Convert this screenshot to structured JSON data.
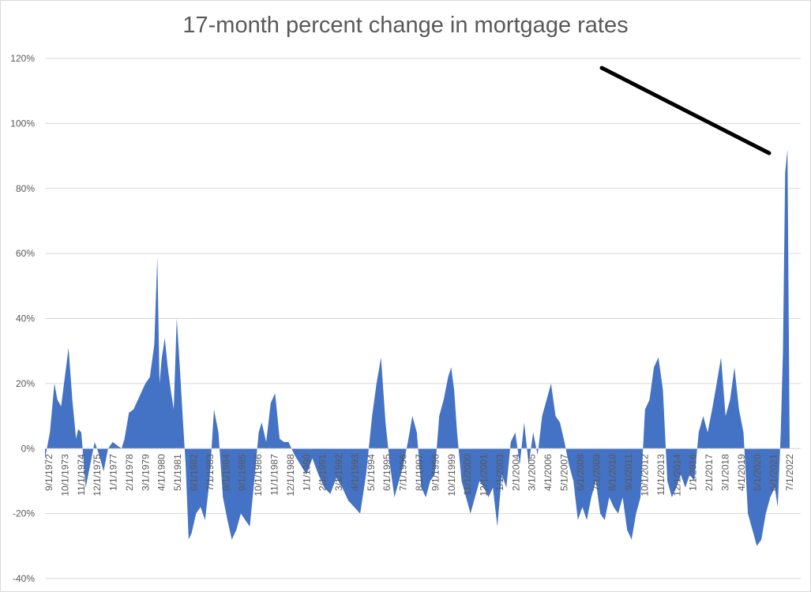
{
  "chart_data": {
    "type": "area",
    "title": "17-month percent change in mortgage rates",
    "xlabel": "",
    "ylabel": "",
    "ylim": [
      -40,
      120
    ],
    "yticks": [
      -40,
      -20,
      0,
      20,
      40,
      60,
      80,
      100,
      120
    ],
    "ytick_labels": [
      "-40%",
      "-20%",
      "0%",
      "20%",
      "40%",
      "60%",
      "80%",
      "100%",
      "120%"
    ],
    "xtick_labels": [
      "9/1/1972",
      "10/1/1973",
      "11/1/1974",
      "12/1/1975",
      "1/1/1977",
      "2/1/1978",
      "3/1/1979",
      "4/1/1980",
      "5/1/1981",
      "6/1/1982",
      "7/1/1983",
      "8/1/1984",
      "9/1/1985",
      "10/1/1986",
      "11/1/1987",
      "12/1/1988",
      "1/1/1990",
      "2/1/1991",
      "3/1/1992",
      "4/1/1993",
      "5/1/1994",
      "6/1/1995",
      "7/1/1996",
      "8/1/1997",
      "9/1/1998",
      "10/1/1999",
      "11/1/2000",
      "12/1/2001",
      "1/1/2003",
      "2/1/2004",
      "3/1/2005",
      "4/1/2006",
      "5/1/2007",
      "6/1/2008",
      "7/1/2009",
      "8/1/2010",
      "9/1/2011",
      "10/1/2012",
      "11/1/2013",
      "12/1/2014",
      "1/1/2016",
      "2/1/2017",
      "3/1/2018",
      "4/1/2019",
      "5/1/2020",
      "6/1/2021",
      "7/1/2022"
    ],
    "grid": true,
    "series": [
      {
        "color": "#4472c4",
        "x": [
          1972.67,
          1973.0,
          1973.3,
          1973.5,
          1973.75,
          1974.0,
          1974.25,
          1974.5,
          1974.75,
          1974.9,
          1975.1,
          1975.4,
          1975.7,
          1976.0,
          1976.3,
          1976.6,
          1976.9,
          1977.2,
          1977.5,
          1977.8,
          1978.0,
          1978.3,
          1978.6,
          1978.9,
          1979.1,
          1979.4,
          1979.7,
          1980.0,
          1980.2,
          1980.35,
          1980.5,
          1980.7,
          1980.9,
          1981.1,
          1981.3,
          1981.5,
          1981.7,
          1981.9,
          1982.1,
          1982.3,
          1982.5,
          1982.8,
          1983.1,
          1983.4,
          1983.7,
          1984.0,
          1984.3,
          1984.6,
          1984.9,
          1985.2,
          1985.5,
          1985.8,
          1986.1,
          1986.4,
          1986.7,
          1987.0,
          1987.2,
          1987.5,
          1987.8,
          1988.1,
          1988.4,
          1988.7,
          1989.0,
          1989.4,
          1989.8,
          1990.2,
          1990.6,
          1991.0,
          1991.4,
          1991.8,
          1992.2,
          1992.6,
          1993.0,
          1993.4,
          1993.8,
          1994.2,
          1994.6,
          1994.9,
          1995.2,
          1995.5,
          1995.8,
          1996.1,
          1996.4,
          1996.7,
          1997.0,
          1997.3,
          1997.6,
          1997.9,
          1998.2,
          1998.5,
          1998.8,
          1999.1,
          1999.4,
          1999.7,
          1999.9,
          2000.1,
          2000.3,
          2000.6,
          2000.9,
          2001.2,
          2001.5,
          2001.8,
          2002.1,
          2002.4,
          2002.7,
          2003.0,
          2003.3,
          2003.6,
          2003.9,
          2004.2,
          2004.5,
          2004.8,
          2005.1,
          2005.4,
          2005.7,
          2006.0,
          2006.3,
          2006.6,
          2006.9,
          2007.2,
          2007.5,
          2007.8,
          2008.1,
          2008.4,
          2008.7,
          2009.0,
          2009.3,
          2009.6,
          2009.9,
          2010.2,
          2010.5,
          2010.8,
          2011.1,
          2011.4,
          2011.7,
          2012.0,
          2012.3,
          2012.6,
          2012.9,
          2013.2,
          2013.5,
          2013.8,
          2014.1,
          2014.4,
          2014.7,
          2015.0,
          2015.3,
          2015.6,
          2015.9,
          2016.2,
          2016.5,
          2016.8,
          2017.1,
          2017.4,
          2017.7,
          2018.0,
          2018.3,
          2018.6,
          2018.9,
          2019.2,
          2019.5,
          2019.8,
          2020.1,
          2020.4,
          2020.7,
          2021.0,
          2021.3,
          2021.6,
          2021.8,
          2022.0,
          2022.15,
          2022.3,
          2022.45,
          2022.6
        ],
        "y": [
          -3,
          5,
          20,
          15,
          13,
          22,
          31,
          15,
          3,
          6,
          5,
          -12,
          -5,
          2,
          -2,
          -7,
          0,
          2,
          1,
          0,
          3,
          11,
          12,
          15,
          17,
          20,
          22,
          32,
          59,
          20,
          28,
          34,
          25,
          18,
          12,
          40,
          26,
          10,
          -5,
          -28,
          -26,
          -20,
          -18,
          -22,
          -10,
          12,
          5,
          -15,
          -22,
          -28,
          -25,
          -20,
          -22,
          -24,
          -10,
          5,
          8,
          2,
          14,
          17,
          3,
          2,
          2,
          -2,
          -5,
          -8,
          -3,
          -8,
          -12,
          -14,
          -9,
          -12,
          -16,
          -18,
          -20,
          -8,
          10,
          20,
          28,
          8,
          -5,
          -15,
          -10,
          -5,
          2,
          10,
          5,
          -12,
          -15,
          -10,
          -8,
          10,
          15,
          22,
          25,
          18,
          5,
          -10,
          -15,
          -20,
          -15,
          -10,
          -12,
          -15,
          -12,
          -24,
          -8,
          -12,
          2,
          5,
          -5,
          8,
          -5,
          5,
          -2,
          10,
          15,
          20,
          10,
          8,
          2,
          -5,
          -10,
          -22,
          -18,
          -22,
          -15,
          -10,
          -20,
          -22,
          -15,
          -18,
          -20,
          -15,
          -25,
          -28,
          -20,
          -15,
          12,
          15,
          25,
          28,
          18,
          -10,
          -15,
          -12,
          -8,
          -12,
          -8,
          -10,
          5,
          10,
          5,
          12,
          20,
          28,
          10,
          15,
          25,
          12,
          5,
          -20,
          -25,
          -30,
          -28,
          -20,
          -15,
          -12,
          -18,
          5,
          30,
          85,
          92,
          0
        ]
      }
    ],
    "annotation": "arrow line pointing to 2022 spike"
  }
}
